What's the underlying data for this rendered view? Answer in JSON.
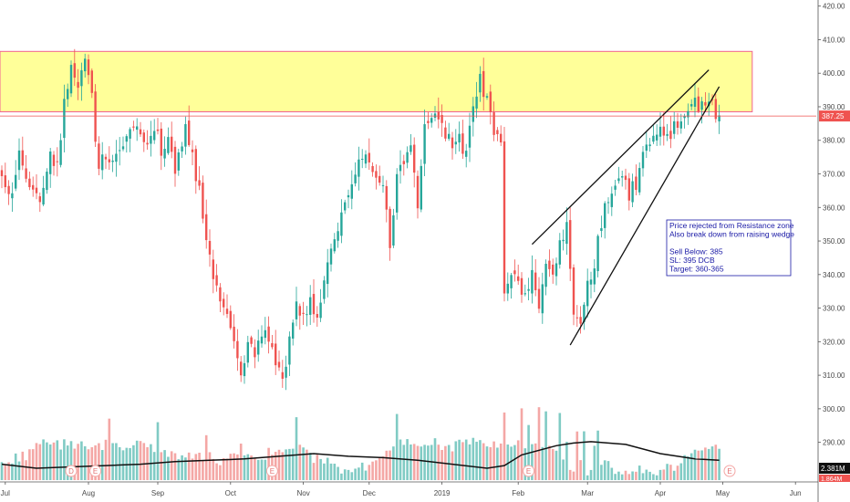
{
  "chart_data": {
    "type": "candlestick",
    "ylim": [
      288,
      421
    ],
    "price_ticks": [
      290,
      300,
      310,
      320,
      330,
      340,
      350,
      360,
      370,
      380,
      390,
      400,
      410,
      420
    ],
    "price_ticks_labels": [
      "290.00",
      "300.00",
      "310.00",
      "320.00",
      "330.00",
      "340.00",
      "350.00",
      "360.00",
      "370.00",
      "380.00",
      "390.00",
      "400.00",
      "410.00",
      "420.00"
    ],
    "time_labels": [
      "Jul",
      "Aug",
      "Sep",
      "Oct",
      "Nov",
      "Dec",
      "2019",
      "Feb",
      "Mar",
      "Apr",
      "May",
      "Jun"
    ],
    "time_label_bar_index": [
      1,
      25,
      45,
      66,
      87,
      106,
      127,
      149,
      169,
      190,
      208,
      229
    ],
    "bar_count_total": 242,
    "resistance_zone": {
      "low": 388.5,
      "high": 406.5,
      "bar_start": 0,
      "bar_end": 216
    },
    "last_price": {
      "value": 387.25,
      "label": "387.25"
    },
    "volume_labels": {
      "current": "2.381M",
      "average": "1.864M"
    },
    "event_markers": [
      {
        "label": "D",
        "bar_index": 20
      },
      {
        "label": "E",
        "bar_index": 27
      },
      {
        "label": "E",
        "bar_index": 78
      },
      {
        "label": "E",
        "bar_index": 152
      },
      {
        "label": "E",
        "bar_index": 210
      }
    ],
    "wedge_lines": [
      {
        "from": {
          "bar_index": 153,
          "price": 349
        },
        "to": {
          "bar_index": 204,
          "price": 401
        }
      },
      {
        "from": {
          "bar_index": 164,
          "price": 319
        },
        "to": {
          "bar_index": 207,
          "price": 396
        }
      }
    ],
    "annotation": {
      "lines": [
        "Price rejected from Resistance zone",
        "Also break down from raising wedge",
        "",
        "Sell Below: 385",
        "SL: 395 DCB",
        "Target: 360-365"
      ]
    },
    "close_anchors": [
      [
        0,
        368
      ],
      [
        2,
        362
      ],
      [
        5,
        376
      ],
      [
        8,
        364
      ],
      [
        11,
        363
      ],
      [
        14,
        375
      ],
      [
        16,
        372
      ],
      [
        18,
        392
      ],
      [
        20,
        400
      ],
      [
        22,
        394
      ],
      [
        24,
        403
      ],
      [
        26,
        394
      ],
      [
        27,
        382
      ],
      [
        28,
        373
      ],
      [
        30,
        376
      ],
      [
        33,
        374
      ],
      [
        36,
        382
      ],
      [
        39,
        386
      ],
      [
        41,
        379
      ],
      [
        44,
        385
      ],
      [
        46,
        376
      ],
      [
        48,
        382
      ],
      [
        50,
        372
      ],
      [
        53,
        383
      ],
      [
        55,
        374
      ],
      [
        57,
        366
      ],
      [
        59,
        350
      ],
      [
        61,
        340
      ],
      [
        63,
        334
      ],
      [
        65,
        328
      ],
      [
        67,
        318
      ],
      [
        69,
        310
      ],
      [
        71,
        320
      ],
      [
        73,
        314
      ],
      [
        75,
        324
      ],
      [
        77,
        320
      ],
      [
        79,
        313
      ],
      [
        81,
        307
      ],
      [
        83,
        322
      ],
      [
        85,
        330
      ],
      [
        87,
        326
      ],
      [
        89,
        332
      ],
      [
        91,
        328
      ],
      [
        93,
        338
      ],
      [
        95,
        346
      ],
      [
        97,
        352
      ],
      [
        99,
        362
      ],
      [
        101,
        367
      ],
      [
        103,
        372
      ],
      [
        105,
        376
      ],
      [
        107,
        372
      ],
      [
        109,
        369
      ],
      [
        111,
        360
      ],
      [
        112,
        348
      ],
      [
        114,
        369
      ],
      [
        116,
        374
      ],
      [
        118,
        378
      ],
      [
        120,
        360
      ],
      [
        122,
        383
      ],
      [
        124,
        389
      ],
      [
        126,
        384
      ],
      [
        128,
        382
      ],
      [
        130,
        377
      ],
      [
        132,
        380
      ],
      [
        134,
        376
      ],
      [
        136,
        389
      ],
      [
        138,
        398
      ],
      [
        140,
        391
      ],
      [
        142,
        384
      ],
      [
        144,
        378
      ],
      [
        145,
        334
      ],
      [
        147,
        342
      ],
      [
        149,
        336
      ],
      [
        151,
        332
      ],
      [
        153,
        339
      ],
      [
        155,
        330
      ],
      [
        157,
        342
      ],
      [
        159,
        340
      ],
      [
        161,
        348
      ],
      [
        163,
        356
      ],
      [
        165,
        328
      ],
      [
        167,
        327
      ],
      [
        169,
        336
      ],
      [
        171,
        344
      ],
      [
        173,
        356
      ],
      [
        175,
        362
      ],
      [
        177,
        366
      ],
      [
        179,
        368
      ],
      [
        181,
        364
      ],
      [
        183,
        367
      ],
      [
        185,
        376
      ],
      [
        187,
        378
      ],
      [
        189,
        382
      ],
      [
        191,
        383
      ],
      [
        193,
        381
      ],
      [
        195,
        386
      ],
      [
        197,
        389
      ],
      [
        199,
        392
      ],
      [
        201,
        390
      ],
      [
        203,
        390
      ],
      [
        205,
        391
      ],
      [
        207,
        385
      ]
    ],
    "volume_ylim": [
      0,
      4
    ],
    "volume_series": "random-walk",
    "volume_ma_anchors": [
      [
        0,
        1.2
      ],
      [
        10,
        0.9
      ],
      [
        20,
        1.0
      ],
      [
        30,
        1.1
      ],
      [
        40,
        1.2
      ],
      [
        50,
        1.4
      ],
      [
        60,
        1.5
      ],
      [
        70,
        1.6
      ],
      [
        80,
        1.8
      ],
      [
        90,
        2.0
      ],
      [
        100,
        1.8
      ],
      [
        110,
        1.7
      ],
      [
        120,
        1.5
      ],
      [
        130,
        1.2
      ],
      [
        140,
        0.9
      ],
      [
        145,
        1.1
      ],
      [
        150,
        1.9
      ],
      [
        160,
        2.6
      ],
      [
        165,
        2.8
      ],
      [
        170,
        2.9
      ],
      [
        180,
        2.7
      ],
      [
        190,
        2.0
      ],
      [
        200,
        1.6
      ],
      [
        207,
        1.5
      ]
    ],
    "colors": {
      "up": "#26a69a",
      "down": "#ef5350",
      "up_volume": "#80cbc4",
      "down_volume": "#f4a7a5",
      "zone_fill": "#ffff99",
      "zone_border": "#f06292",
      "last_price_bg": "#ef5350",
      "axis_text": "#4a4a4a",
      "annotation_text": "#1a1aa6",
      "annotation_border": "#1a1aa6"
    }
  }
}
